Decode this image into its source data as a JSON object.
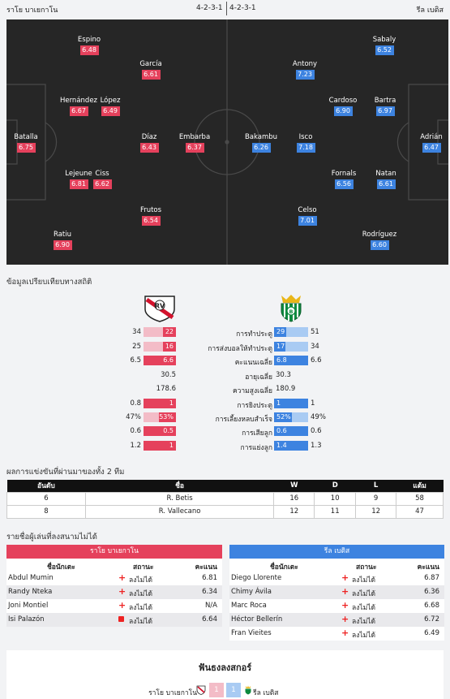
{
  "match": {
    "home_team": "ราโย บาเยกาโน",
    "away_team": "รีล เบติส",
    "home_formation": "4-2-3-1",
    "away_formation": "4-2-3-1"
  },
  "colors": {
    "home": "#e5415c",
    "away": "#3d83e0",
    "pitch": "#262626"
  },
  "lineup": {
    "home": [
      {
        "name": "Espino",
        "rating": "6.48"
      },
      {
        "name": "García",
        "rating": "6.61"
      },
      {
        "name": "Hernández",
        "rating": "6.67"
      },
      {
        "name": "López",
        "rating": "6.49"
      },
      {
        "name": "Batalla",
        "rating": "6.75"
      },
      {
        "name": "Díaz",
        "rating": "6.43"
      },
      {
        "name": "Embarba",
        "rating": "6.37"
      },
      {
        "name": "Lejeune",
        "rating": "6.81"
      },
      {
        "name": "Ciss",
        "rating": "6.62"
      },
      {
        "name": "Frutos",
        "rating": "6.54"
      },
      {
        "name": "Ratiu",
        "rating": "6.90"
      }
    ],
    "away": [
      {
        "name": "Sabaly",
        "rating": "6.52"
      },
      {
        "name": "Antony",
        "rating": "7.23"
      },
      {
        "name": "Cardoso",
        "rating": "6.90"
      },
      {
        "name": "Bartra",
        "rating": "6.97"
      },
      {
        "name": "Bakambu",
        "rating": "6.26"
      },
      {
        "name": "Isco",
        "rating": "7.18"
      },
      {
        "name": "Adrián",
        "rating": "6.47"
      },
      {
        "name": "Fornals",
        "rating": "6.56"
      },
      {
        "name": "Natan",
        "rating": "6.61"
      },
      {
        "name": "Celso",
        "rating": "7.01"
      },
      {
        "name": "Rodríguez",
        "rating": "6.60"
      }
    ]
  },
  "stats": {
    "title": "ข้อมูลเปรียบเทียบทางสถิติ",
    "rows": [
      {
        "label": "การทำประตู",
        "home_total": "34",
        "home_value": "22",
        "home_frac": 0.39,
        "away_value": "29",
        "away_total": "51",
        "away_frac": 0.36,
        "type": "bar"
      },
      {
        "label": "การส่งบอลให้ทำประตู",
        "home_total": "25",
        "home_value": "16",
        "home_frac": 0.39,
        "away_value": "17",
        "away_total": "34",
        "away_frac": 0.33,
        "type": "bar"
      },
      {
        "label": "คะแนนเฉลี่ย",
        "home_total": "6.5",
        "home_value": "6.6",
        "home_frac": 1.0,
        "away_value": "6.8",
        "away_total": "6.6",
        "away_frac": 1.0,
        "type": "bar"
      },
      {
        "label": "อายุเฉลี่ย",
        "home_value": "30.5",
        "away_value": "30.3",
        "type": "plain"
      },
      {
        "label": "ความสูงเฉลี่ย",
        "home_value": "178.6",
        "away_value": "180.9",
        "type": "plain"
      },
      {
        "label": "การยิงประตู",
        "home_total": "0.8",
        "home_value": "1",
        "home_frac": 1.0,
        "away_value": "1",
        "away_total": "1",
        "away_frac": 1.0,
        "type": "bar"
      },
      {
        "label": "การเลี้ยงหลบสำเร็จ",
        "home_total": "47%",
        "home_value": "53%",
        "home_frac": 0.53,
        "away_value": "52%",
        "away_total": "49%",
        "away_frac": 0.52,
        "type": "bar"
      },
      {
        "label": "การเสียลูก",
        "home_total": "0.6",
        "home_value": "0.5",
        "home_frac": 1.0,
        "away_value": "0.6",
        "away_total": "0.6",
        "away_frac": 1.0,
        "type": "bar"
      },
      {
        "label": "การแย่งลูก",
        "home_total": "1.2",
        "home_value": "1",
        "home_frac": 1.0,
        "away_value": "1.4",
        "away_total": "1.3",
        "away_frac": 1.0,
        "type": "bar"
      }
    ]
  },
  "standings": {
    "title": "ผลการแข่งขันที่ผ่านมาของทั้ง 2 ทีม",
    "headers": [
      "อันดับ",
      "ชื่อ",
      "W",
      "D",
      "L",
      "แต้ม"
    ],
    "rows": [
      [
        "6",
        "R. Betis",
        "16",
        "10",
        "9",
        "58"
      ],
      [
        "8",
        "R. Vallecano",
        "12",
        "11",
        "12",
        "47"
      ]
    ]
  },
  "absences": {
    "title": "รายชื่อผู้เล่นที่ลงสนามไม่ได้",
    "col_name": "ชื่อนักเตะ",
    "col_status": "สถานะ",
    "col_rating": "คะแนน",
    "home": {
      "team": "ราโย บาเยกาโน",
      "players": [
        {
          "name": "Abdul Mumin",
          "icon": "injury-cross-icon",
          "status": "ลงไม่ได้",
          "rating": "6.81"
        },
        {
          "name": "Randy Nteka",
          "icon": "injury-cross-icon",
          "status": "ลงไม่ได้",
          "rating": "6.34"
        },
        {
          "name": "Joni Montiel",
          "icon": "injury-cross-icon",
          "status": "ลงไม่ได้",
          "rating": "N/A"
        },
        {
          "name": "Isi Palazón",
          "icon": "red-card-icon",
          "status": "ลงไม่ได้",
          "rating": "6.64"
        }
      ]
    },
    "away": {
      "team": "รีล เบติส",
      "players": [
        {
          "name": "Diego Llorente",
          "icon": "injury-cross-icon",
          "status": "ลงไม่ได้",
          "rating": "6.87"
        },
        {
          "name": "Chimy Ávila",
          "icon": "injury-cross-icon",
          "status": "ลงไม่ได้",
          "rating": "6.36"
        },
        {
          "name": "Marc Roca",
          "icon": "injury-cross-icon",
          "status": "ลงไม่ได้",
          "rating": "6.68"
        },
        {
          "name": "Héctor Bellerín",
          "icon": "injury-cross-icon",
          "status": "ลงไม่ได้",
          "rating": "6.72"
        },
        {
          "name": "Fran Vieites",
          "icon": "injury-cross-icon",
          "status": "ลงไม่ได้",
          "rating": "6.49"
        }
      ]
    }
  },
  "forecast": {
    "title": "ฟันธงลงสกอร์",
    "home_team": "ราโย บาเยกาโน",
    "away_team": "รีล เบติส",
    "home_score": "1",
    "away_score": "1"
  }
}
